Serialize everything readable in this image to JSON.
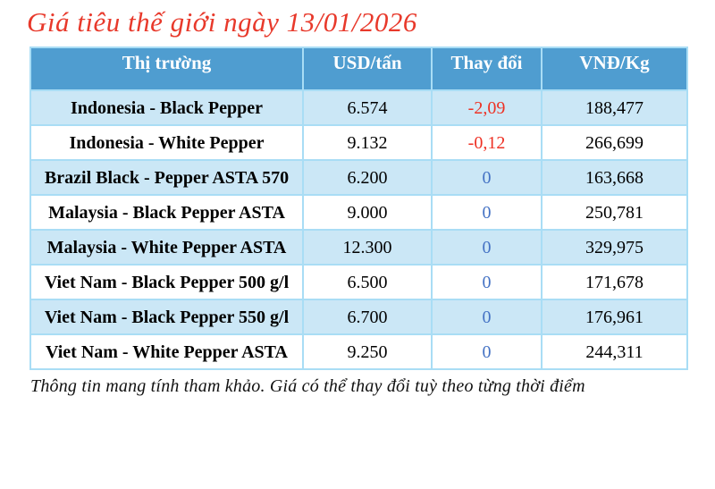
{
  "title": "Giá tiêu thế giới ngày 13/01/2026",
  "colors": {
    "title_red": "#e8392b",
    "header_bg": "#4f9dd0",
    "header_text": "#ffffff",
    "row_alt_bg": "#cbe7f6",
    "row_bg": "#ffffff",
    "border": "#a9ddf5",
    "negative_red": "#ee3124",
    "zero_blue": "#4472c4",
    "text": "#000000"
  },
  "table": {
    "columns": [
      "Thị trường",
      "USD/tấn",
      "Thay đổi",
      "VNĐ/Kg"
    ],
    "rows": [
      {
        "market": "Indonesia - Black Pepper",
        "usd": "6.574",
        "change": "-2,09",
        "vnd": "188,477",
        "shaded": true
      },
      {
        "market": "Indonesia - White Pepper",
        "usd": "9.132",
        "change": "-0,12",
        "vnd": "266,699",
        "shaded": false
      },
      {
        "market": "Brazil Black - Pepper ASTA 570",
        "usd": "6.200",
        "change": "0",
        "vnd": "163,668",
        "shaded": true
      },
      {
        "market": "Malaysia - Black Pepper ASTA",
        "usd": "9.000",
        "change": "0",
        "vnd": "250,781",
        "shaded": false
      },
      {
        "market": "Malaysia - White Pepper ASTA",
        "usd": "12.300",
        "change": "0",
        "vnd": "329,975",
        "shaded": true
      },
      {
        "market": "Viet Nam - Black Pepper 500 g/l",
        "usd": "6.500",
        "change": "0",
        "vnd": "171,678",
        "shaded": false
      },
      {
        "market": "Viet Nam - Black Pepper 550 g/l",
        "usd": "6.700",
        "change": "0",
        "vnd": "176,961",
        "shaded": true
      },
      {
        "market": "Viet Nam - White Pepper ASTA",
        "usd": "9.250",
        "change": "0",
        "vnd": "244,311",
        "shaded": false
      }
    ]
  },
  "footer": "Thông tin mang tính tham khảo. Giá có thể thay đổi tuỳ theo từng thời điểm"
}
